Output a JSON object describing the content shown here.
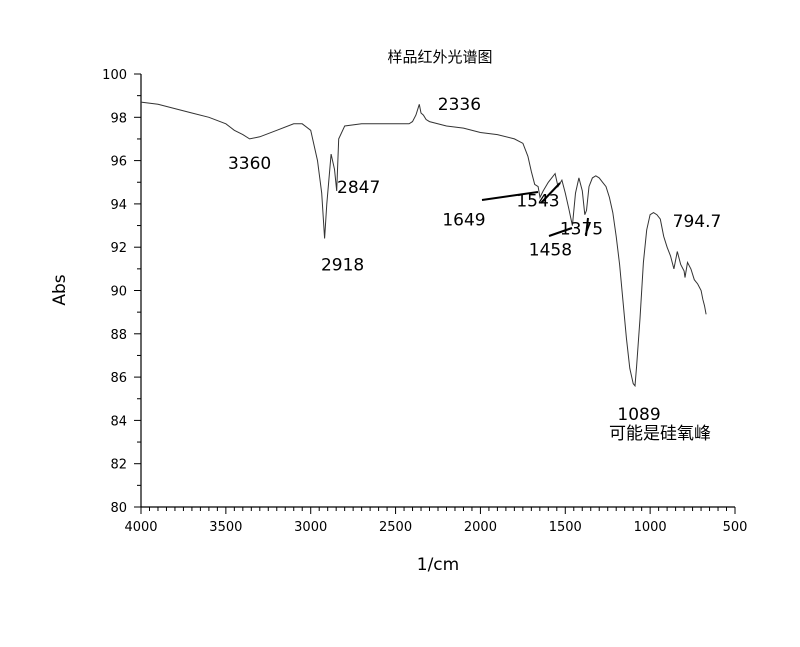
{
  "chart_data": {
    "type": "line",
    "title": "样品红外光谱图",
    "xlabel": "1/cm",
    "ylabel": "Abs",
    "xlim": [
      4000,
      500
    ],
    "ylim": [
      80,
      100
    ],
    "x_ticks": [
      "4000",
      "3500",
      "3000",
      "2500",
      "2000",
      "1500",
      "1000",
      "500"
    ],
    "y_ticks": [
      "80",
      "82",
      "84",
      "86",
      "88",
      "90",
      "92",
      "94",
      "96",
      "98",
      "100"
    ],
    "grid": false,
    "legend": "none",
    "line_color": "#333333",
    "series": [
      {
        "x": [
          4000,
          3900,
          3800,
          3700,
          3600,
          3500,
          3450,
          3400,
          3360,
          3300,
          3200,
          3100,
          3050,
          3000,
          2960,
          2935,
          2918,
          2905,
          2880,
          2860,
          2847,
          2835,
          2800,
          2700,
          2600,
          2500,
          2420,
          2400,
          2380,
          2360,
          2350,
          2336,
          2320,
          2300,
          2200,
          2100,
          2000,
          1900,
          1800,
          1750,
          1720,
          1700,
          1680,
          1660,
          1649,
          1630,
          1600,
          1580,
          1560,
          1543,
          1520,
          1500,
          1480,
          1458,
          1440,
          1420,
          1400,
          1385,
          1375,
          1360,
          1340,
          1320,
          1300,
          1280,
          1260,
          1240,
          1220,
          1200,
          1180,
          1160,
          1140,
          1120,
          1100,
          1089,
          1080,
          1060,
          1040,
          1020,
          1000,
          980,
          960,
          940,
          920,
          900,
          880,
          860,
          840,
          820,
          800,
          794.7,
          780,
          760,
          740,
          720,
          700,
          690,
          680,
          670
        ],
        "y": [
          98.7,
          98.6,
          98.4,
          98.2,
          98.0,
          97.7,
          97.4,
          97.2,
          97.0,
          97.1,
          97.4,
          97.7,
          97.7,
          97.4,
          96.0,
          94.5,
          92.4,
          94.0,
          96.3,
          95.6,
          94.6,
          97.0,
          97.6,
          97.7,
          97.7,
          97.7,
          97.7,
          97.8,
          98.1,
          98.6,
          98.2,
          98.1,
          97.9,
          97.8,
          97.6,
          97.5,
          97.3,
          97.2,
          97.0,
          96.8,
          96.2,
          95.5,
          94.9,
          94.8,
          94.3,
          94.6,
          95.0,
          95.2,
          95.4,
          94.8,
          95.1,
          94.5,
          93.8,
          93.0,
          94.5,
          95.2,
          94.6,
          93.5,
          93.7,
          94.8,
          95.2,
          95.3,
          95.2,
          95.0,
          94.8,
          94.3,
          93.6,
          92.5,
          91.2,
          89.5,
          87.8,
          86.4,
          85.7,
          85.6,
          86.5,
          88.7,
          91.3,
          92.8,
          93.5,
          93.6,
          93.5,
          93.3,
          92.5,
          92.0,
          91.6,
          91.0,
          91.8,
          91.2,
          90.9,
          90.6,
          91.3,
          91.0,
          90.5,
          90.3,
          90.0,
          89.6,
          89.3,
          88.9
        ]
      }
    ],
    "annotations": [
      {
        "text": "3360",
        "x": 3360,
        "y": 97.0
      },
      {
        "text": "2918",
        "x": 2918,
        "y": 92.4
      },
      {
        "text": "2847",
        "x": 2847,
        "y": 94.6
      },
      {
        "text": "2336",
        "x": 2336,
        "y": 98.1
      },
      {
        "text": "1649",
        "x": 1649,
        "y": 94.3
      },
      {
        "text": "1543",
        "x": 1543,
        "y": 94.8
      },
      {
        "text": "1458",
        "x": 1458,
        "y": 93.0
      },
      {
        "text": "1375",
        "x": 1375,
        "y": 93.7
      },
      {
        "text": "1089",
        "x": 1089,
        "y": 85.6
      },
      {
        "text": "794.7",
        "x": 794.7,
        "y": 91.0
      },
      {
        "text": "可能是硅氧峰",
        "x": 1089,
        "y": 85.6
      }
    ]
  }
}
